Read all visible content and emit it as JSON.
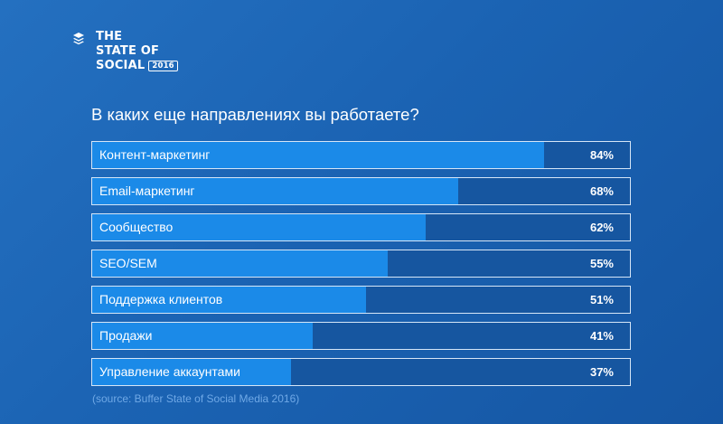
{
  "brand": {
    "line1": "THE",
    "line2": "STATE OF",
    "line3": "SOCIAL",
    "year": "2016",
    "icon": "stacked-layers-icon"
  },
  "chart_data": {
    "type": "bar",
    "orientation": "horizontal",
    "title": "В каких еще направлениях вы работаете?",
    "xlim": [
      0,
      100
    ],
    "categories": [
      "Контент-маркетинг",
      "Email-маркетинг",
      "Сообщество",
      "SEO/SEM",
      "Поддержка клиентов",
      "Продажи",
      "Управление аккаунтами"
    ],
    "values": [
      84,
      68,
      62,
      55,
      51,
      41,
      37
    ],
    "value_labels": [
      "84%",
      "68%",
      "62%",
      "55%",
      "51%",
      "41%",
      "37%"
    ],
    "source": "(source: Buffer State of Social Media 2016)"
  },
  "colors": {
    "background": "#1b63b3",
    "bar_fill": "#1b8ae8",
    "bar_track": "#1656a0",
    "source_text": "#6fa8e6"
  }
}
